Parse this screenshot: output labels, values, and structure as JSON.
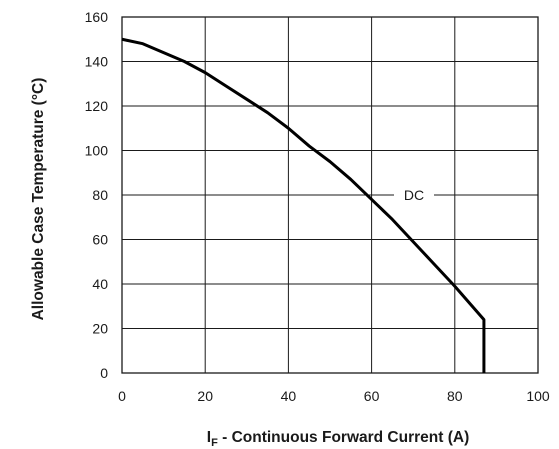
{
  "chart_data": {
    "type": "line",
    "xlabel": {
      "symbol": "I",
      "subscript": "F",
      "rest": " - Continuous Forward Current (A)"
    },
    "ylabel": "Allowable Case Temperature (°C)",
    "xlim": [
      0,
      100
    ],
    "ylim": [
      0,
      160
    ],
    "xticks": [
      0,
      20,
      40,
      60,
      80,
      100
    ],
    "yticks": [
      0,
      20,
      40,
      60,
      80,
      100,
      120,
      140,
      160
    ],
    "grid": true,
    "series": [
      {
        "name": "DC",
        "x": [
          0,
          5,
          10,
          15,
          20,
          25,
          30,
          35,
          40,
          45,
          50,
          55,
          60,
          65,
          70,
          75,
          80,
          87,
          87
        ],
        "y": [
          150,
          148,
          144,
          140,
          135,
          129,
          123,
          117,
          110,
          102,
          95,
          87,
          78,
          69,
          59,
          49,
          39,
          24,
          0
        ]
      }
    ]
  }
}
